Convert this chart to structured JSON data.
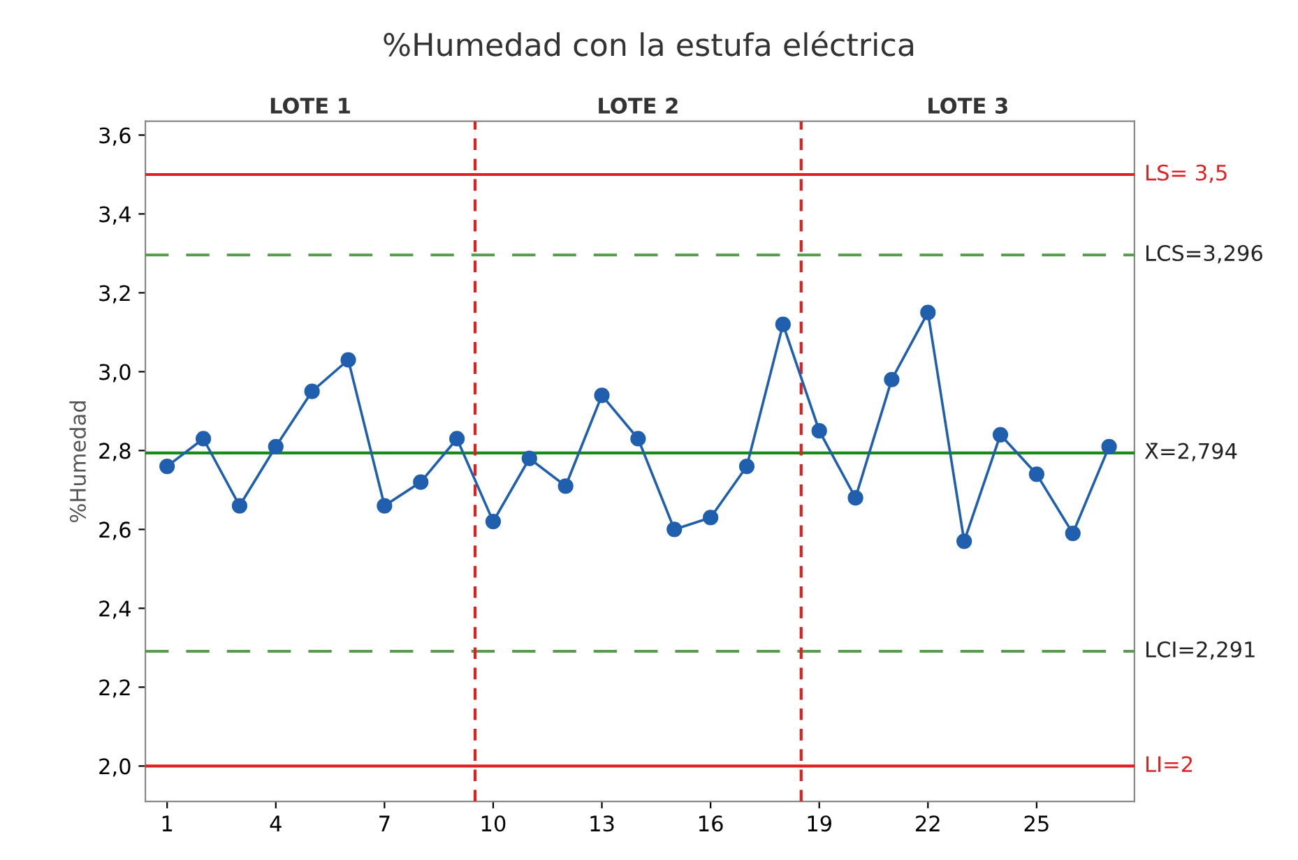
{
  "chart_data": {
    "type": "line",
    "title": "%Humedad con la estufa eléctrica",
    "ylabel": "%Humedad",
    "x": [
      1,
      2,
      3,
      4,
      5,
      6,
      7,
      8,
      9,
      10,
      11,
      12,
      13,
      14,
      15,
      16,
      17,
      18,
      19,
      20,
      21,
      22,
      23,
      24,
      25,
      26,
      27
    ],
    "series": [
      {
        "color": "#1f5fad",
        "values": [
          2.76,
          2.83,
          2.66,
          2.81,
          2.95,
          3.03,
          2.66,
          2.72,
          2.83,
          2.62,
          2.78,
          2.71,
          2.94,
          2.83,
          2.6,
          2.63,
          2.76,
          3.12,
          2.85,
          2.68,
          2.98,
          3.15,
          2.57,
          2.84,
          2.74,
          2.59,
          2.81
        ]
      }
    ],
    "marker": "circle",
    "line_style": "solid",
    "grid": false,
    "legend": false,
    "xlim": [
      0.4,
      27.7
    ],
    "xticks": [
      1,
      4,
      7,
      10,
      13,
      16,
      19,
      22,
      25
    ],
    "ylim": [
      1.91,
      3.635
    ],
    "yticks": [
      {
        "value": 2.0,
        "label": "2,0"
      },
      {
        "value": 2.2,
        "label": "2,2"
      },
      {
        "value": 2.4,
        "label": "2,4"
      },
      {
        "value": 2.6,
        "label": "2,6"
      },
      {
        "value": 2.8,
        "label": "2,8"
      },
      {
        "value": 3.0,
        "label": "3,0"
      },
      {
        "value": 3.2,
        "label": "3,2"
      },
      {
        "value": 3.4,
        "label": "3,4"
      },
      {
        "value": 3.6,
        "label": "3,6"
      }
    ],
    "ref_lines": [
      {
        "axis": "y",
        "value": 3.5,
        "label": "LS= 3,5",
        "color": "#e02020",
        "line_style": "solid"
      },
      {
        "axis": "y",
        "value": 3.296,
        "label": "LCS=3,296",
        "color": "#5a9a50",
        "line_style": "dashed"
      },
      {
        "axis": "y",
        "value": 2.794,
        "label": "X̄=2,794",
        "color": "#1a8a1a",
        "line_style": "solid"
      },
      {
        "axis": "y",
        "value": 2.291,
        "label": "LCI=2,291",
        "color": "#5a9a50",
        "line_style": "dashed"
      },
      {
        "axis": "y",
        "value": 2.0,
        "label": "LI=2",
        "color": "#e02020",
        "line_style": "solid"
      },
      {
        "axis": "x",
        "value": 9.5,
        "color": "#e02020",
        "line_style": "dashed"
      },
      {
        "axis": "x",
        "value": 18.5,
        "color": "#e02020",
        "line_style": "dashed"
      }
    ],
    "annotations": [
      "LOTE 1",
      "LOTE 2",
      "LOTE 3"
    ]
  }
}
